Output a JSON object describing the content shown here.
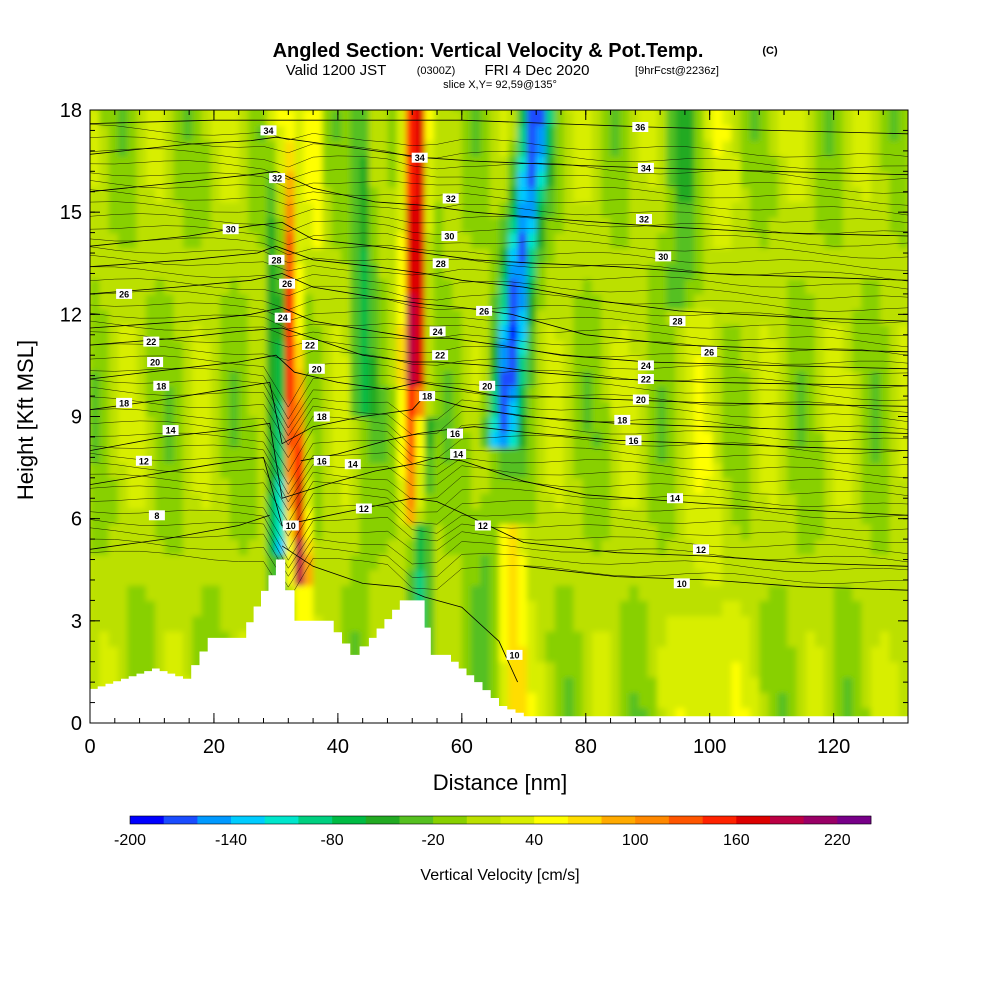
{
  "chart_data": {
    "type": "heatmap",
    "title": "Angled Section: Vertical Velocity & Pot.Temp.",
    "title_unit": "(C)",
    "subtitle_main": "Valid 1200 JST",
    "subtitle_z": "(0300Z)",
    "subtitle_date": "FRI 4 Dec 2020",
    "subtitle_fcst": "[9hrFcst@2236z]",
    "slice_label": "slice X,Y= 92,59@135°",
    "xlabel": "Distance [nm]",
    "ylabel": "Height [Kft MSL]",
    "xlim": [
      0,
      132
    ],
    "ylim": [
      0,
      18
    ],
    "x_ticks": [
      0,
      20,
      40,
      60,
      80,
      100,
      120
    ],
    "y_ticks": [
      0,
      3,
      6,
      9,
      12,
      15,
      18
    ],
    "colorbar": {
      "label": "Vertical Velocity [cm/s]",
      "min": -200,
      "max": 240,
      "tick_labels": [
        "-200",
        "-140",
        "-80",
        "-20",
        "40",
        "100",
        "160",
        "220"
      ],
      "tick_values": [
        -200,
        -140,
        -80,
        -20,
        40,
        100,
        160,
        220
      ],
      "colors": [
        "#0000ff",
        "#1a4cff",
        "#0099ff",
        "#00ccff",
        "#00e6cc",
        "#00d080",
        "#00bb44",
        "#22aa22",
        "#55c020",
        "#88d000",
        "#bbe000",
        "#d8ee00",
        "#ffff00",
        "#ffdd00",
        "#ffaa00",
        "#ff8800",
        "#ff5500",
        "#ff2200",
        "#dd0000",
        "#bb0044",
        "#990066",
        "#770088"
      ]
    },
    "terrain": [
      [
        0,
        1.0
      ],
      [
        10,
        1.6
      ],
      [
        15,
        1.3
      ],
      [
        19,
        2.5
      ],
      [
        24,
        2.5
      ],
      [
        30,
        4.8
      ],
      [
        33,
        3.0
      ],
      [
        36,
        3.0
      ],
      [
        38,
        3.0
      ],
      [
        42,
        2.0
      ],
      [
        45,
        2.5
      ],
      [
        50,
        3.6
      ],
      [
        53,
        3.6
      ],
      [
        55,
        2.0
      ],
      [
        57,
        2.0
      ],
      [
        62,
        1.2
      ],
      [
        66,
        0.5
      ],
      [
        70,
        0.2
      ],
      [
        132,
        0.2
      ]
    ],
    "theta_contours": [
      {
        "label": "8",
        "points": [
          [
            0,
            5.1
          ],
          [
            12,
            5.4
          ],
          [
            24,
            5.8
          ],
          [
            29,
            6.1
          ]
        ]
      },
      {
        "label": "10",
        "points": [
          [
            31,
            5.2
          ],
          [
            36,
            4.6
          ],
          [
            44,
            4.1
          ],
          [
            50,
            4.0
          ],
          [
            54,
            3.7
          ],
          [
            60,
            3.4
          ],
          [
            66,
            2.4
          ],
          [
            69,
            1.2
          ]
        ]
      },
      {
        "label": "10",
        "points": [
          [
            70,
            4.6
          ],
          [
            85,
            4.3
          ],
          [
            100,
            4.2
          ],
          [
            115,
            4.0
          ],
          [
            132,
            3.9
          ]
        ]
      },
      {
        "label": "12",
        "points": [
          [
            0,
            7.0
          ],
          [
            10,
            7.3
          ],
          [
            20,
            7.6
          ],
          [
            28,
            7.8
          ],
          [
            31,
            5.8
          ],
          [
            36,
            6.0
          ],
          [
            44,
            6.3
          ],
          [
            52,
            6.6
          ],
          [
            56,
            6.5
          ],
          [
            62,
            6.0
          ],
          [
            70,
            5.3
          ],
          [
            85,
            5.0
          ],
          [
            100,
            4.9
          ],
          [
            115,
            4.7
          ],
          [
            132,
            4.6
          ]
        ]
      },
      {
        "label": "14",
        "points": [
          [
            0,
            8.0
          ],
          [
            12,
            8.4
          ],
          [
            22,
            8.6
          ],
          [
            29,
            8.8
          ],
          [
            31,
            6.6
          ],
          [
            38,
            7.0
          ],
          [
            46,
            7.4
          ],
          [
            52,
            7.6
          ],
          [
            56,
            7.8
          ],
          [
            60,
            7.7
          ],
          [
            70,
            7.1
          ],
          [
            80,
            6.7
          ],
          [
            95,
            6.5
          ],
          [
            110,
            6.3
          ],
          [
            132,
            6.1
          ]
        ]
      },
      {
        "label": "16",
        "points": [
          [
            34,
            7.7
          ],
          [
            40,
            7.9
          ],
          [
            48,
            8.3
          ],
          [
            53,
            8.5
          ],
          [
            57,
            8.6
          ],
          [
            62,
            8.7
          ],
          [
            72,
            8.5
          ],
          [
            85,
            8.3
          ],
          [
            100,
            8.2
          ],
          [
            115,
            8.1
          ],
          [
            132,
            8.0
          ]
        ]
      },
      {
        "label": "18",
        "points": [
          [
            0,
            9.2
          ],
          [
            12,
            9.5
          ],
          [
            22,
            9.8
          ],
          [
            29,
            10.0
          ],
          [
            31,
            8.2
          ],
          [
            36,
            8.7
          ],
          [
            44,
            9.0
          ],
          [
            52,
            9.2
          ],
          [
            54,
            9.6
          ],
          [
            60,
            9.3
          ],
          [
            70,
            9.0
          ],
          [
            85,
            8.8
          ],
          [
            100,
            8.7
          ],
          [
            132,
            8.5
          ]
        ]
      },
      {
        "label": "20",
        "points": [
          [
            0,
            10.1
          ],
          [
            14,
            10.4
          ],
          [
            24,
            10.6
          ],
          [
            30,
            10.8
          ],
          [
            33,
            10.3
          ],
          [
            40,
            10.0
          ],
          [
            48,
            9.8
          ],
          [
            53,
            10.0
          ],
          [
            60,
            9.8
          ],
          [
            66,
            9.6
          ],
          [
            72,
            9.6
          ],
          [
            85,
            9.5
          ],
          [
            100,
            9.4
          ],
          [
            132,
            9.3
          ]
        ]
      },
      {
        "label": "22",
        "points": [
          [
            0,
            11.1
          ],
          [
            14,
            11.3
          ],
          [
            24,
            11.5
          ],
          [
            31,
            11.6
          ],
          [
            36,
            11.3
          ],
          [
            44,
            10.8
          ],
          [
            52,
            10.6
          ],
          [
            56,
            10.6
          ],
          [
            64,
            10.5
          ],
          [
            72,
            10.3
          ],
          [
            85,
            10.1
          ],
          [
            100,
            10.0
          ],
          [
            132,
            9.9
          ]
        ]
      },
      {
        "label": "24",
        "points": [
          [
            0,
            11.6
          ],
          [
            16,
            11.8
          ],
          [
            26,
            12.0
          ],
          [
            31,
            12.2
          ],
          [
            36,
            11.8
          ],
          [
            46,
            11.5
          ],
          [
            53,
            11.3
          ],
          [
            58,
            11.3
          ],
          [
            66,
            11.1
          ],
          [
            76,
            10.8
          ],
          [
            90,
            10.6
          ],
          [
            110,
            10.5
          ],
          [
            132,
            10.4
          ]
        ]
      },
      {
        "label": "26",
        "points": [
          [
            0,
            12.6
          ],
          [
            14,
            12.8
          ],
          [
            26,
            13.0
          ],
          [
            31,
            13.2
          ],
          [
            36,
            12.8
          ],
          [
            46,
            12.5
          ],
          [
            54,
            12.3
          ],
          [
            60,
            12.2
          ],
          [
            68,
            12.0
          ],
          [
            80,
            11.4
          ],
          [
            95,
            11.1
          ],
          [
            110,
            11.0
          ],
          [
            132,
            10.9
          ]
        ]
      },
      {
        "label": "28",
        "points": [
          [
            0,
            13.4
          ],
          [
            16,
            13.6
          ],
          [
            27,
            13.8
          ],
          [
            30,
            14.0
          ],
          [
            36,
            13.6
          ],
          [
            46,
            13.4
          ],
          [
            54,
            13.2
          ],
          [
            60,
            13.0
          ],
          [
            70,
            12.8
          ],
          [
            82,
            12.4
          ],
          [
            95,
            12.1
          ],
          [
            115,
            11.9
          ],
          [
            132,
            11.8
          ]
        ]
      },
      {
        "label": "30",
        "points": [
          [
            0,
            14.0
          ],
          [
            16,
            14.3
          ],
          [
            26,
            14.6
          ],
          [
            31,
            14.7
          ],
          [
            36,
            14.2
          ],
          [
            46,
            14.0
          ],
          [
            54,
            13.8
          ],
          [
            62,
            13.6
          ],
          [
            72,
            13.5
          ],
          [
            85,
            13.4
          ],
          [
            100,
            13.2
          ],
          [
            132,
            13.0
          ]
        ]
      },
      {
        "label": "32",
        "points": [
          [
            0,
            15.6
          ],
          [
            16,
            15.9
          ],
          [
            26,
            16.1
          ],
          [
            30,
            16.2
          ],
          [
            36,
            15.7
          ],
          [
            46,
            15.3
          ],
          [
            54,
            15.2
          ],
          [
            62,
            15.0
          ],
          [
            75,
            14.8
          ],
          [
            90,
            14.6
          ],
          [
            110,
            14.4
          ],
          [
            132,
            14.3
          ]
        ]
      },
      {
        "label": "34",
        "points": [
          [
            0,
            16.7
          ],
          [
            16,
            17.0
          ],
          [
            26,
            17.1
          ],
          [
            30,
            17.2
          ],
          [
            38,
            17.0
          ],
          [
            46,
            16.8
          ],
          [
            54,
            16.6
          ],
          [
            62,
            16.5
          ],
          [
            75,
            16.4
          ],
          [
            90,
            16.3
          ],
          [
            110,
            16.2
          ],
          [
            132,
            16.1
          ]
        ]
      },
      {
        "label": "36",
        "points": [
          [
            0,
            17.6
          ],
          [
            20,
            17.7
          ],
          [
            40,
            17.7
          ],
          [
            60,
            17.7
          ],
          [
            75,
            17.6
          ],
          [
            90,
            17.5
          ],
          [
            110,
            17.4
          ],
          [
            132,
            17.3
          ]
        ]
      }
    ],
    "contour_labels": [
      {
        "text": "34",
        "x": 28.8,
        "y": 17.4
      },
      {
        "text": "32",
        "x": 30.2,
        "y": 16.0
      },
      {
        "text": "30",
        "x": 22.7,
        "y": 14.5
      },
      {
        "text": "28",
        "x": 30.1,
        "y": 13.6
      },
      {
        "text": "26",
        "x": 31.8,
        "y": 12.9
      },
      {
        "text": "26",
        "x": 5.5,
        "y": 12.6
      },
      {
        "text": "24",
        "x": 31.1,
        "y": 11.9
      },
      {
        "text": "22",
        "x": 9.9,
        "y": 11.2
      },
      {
        "text": "22",
        "x": 35.5,
        "y": 11.1
      },
      {
        "text": "20",
        "x": 10.5,
        "y": 10.6
      },
      {
        "text": "20",
        "x": 36.6,
        "y": 10.4
      },
      {
        "text": "18",
        "x": 11.5,
        "y": 9.9
      },
      {
        "text": "18",
        "x": 5.5,
        "y": 9.4
      },
      {
        "text": "18",
        "x": 37.4,
        "y": 9.0
      },
      {
        "text": "14",
        "x": 13.0,
        "y": 8.6
      },
      {
        "text": "12",
        "x": 8.7,
        "y": 7.7
      },
      {
        "text": "16",
        "x": 37.4,
        "y": 7.7
      },
      {
        "text": "14",
        "x": 42.4,
        "y": 7.6
      },
      {
        "text": "12",
        "x": 44.2,
        "y": 6.3
      },
      {
        "text": "8",
        "x": 10.8,
        "y": 6.1
      },
      {
        "text": "10",
        "x": 32.4,
        "y": 5.8
      },
      {
        "text": "34",
        "x": 53.2,
        "y": 16.6
      },
      {
        "text": "32",
        "x": 58.2,
        "y": 15.4
      },
      {
        "text": "30",
        "x": 58.0,
        "y": 14.3
      },
      {
        "text": "28",
        "x": 56.6,
        "y": 13.5
      },
      {
        "text": "26",
        "x": 63.6,
        "y": 12.1
      },
      {
        "text": "24",
        "x": 56.1,
        "y": 11.5
      },
      {
        "text": "22",
        "x": 56.5,
        "y": 10.8
      },
      {
        "text": "20",
        "x": 64.1,
        "y": 9.9
      },
      {
        "text": "18",
        "x": 54.4,
        "y": 9.6
      },
      {
        "text": "16",
        "x": 58.9,
        "y": 8.5
      },
      {
        "text": "14",
        "x": 59.4,
        "y": 7.9
      },
      {
        "text": "12",
        "x": 63.4,
        "y": 5.8
      },
      {
        "text": "10",
        "x": 68.5,
        "y": 2.0
      },
      {
        "text": "36",
        "x": 88.8,
        "y": 17.5
      },
      {
        "text": "34",
        "x": 89.7,
        "y": 16.3
      },
      {
        "text": "32",
        "x": 89.4,
        "y": 14.8
      },
      {
        "text": "30",
        "x": 92.5,
        "y": 13.7
      },
      {
        "text": "28",
        "x": 94.8,
        "y": 11.8
      },
      {
        "text": "26",
        "x": 99.9,
        "y": 10.9
      },
      {
        "text": "24",
        "x": 89.7,
        "y": 10.5
      },
      {
        "text": "22",
        "x": 89.7,
        "y": 10.1
      },
      {
        "text": "20",
        "x": 88.9,
        "y": 9.5
      },
      {
        "text": "18",
        "x": 85.9,
        "y": 8.9
      },
      {
        "text": "16",
        "x": 87.7,
        "y": 8.3
      },
      {
        "text": "14",
        "x": 94.4,
        "y": 6.6
      },
      {
        "text": "12",
        "x": 98.6,
        "y": 5.1
      },
      {
        "text": "10",
        "x": 95.5,
        "y": 4.1
      }
    ]
  }
}
